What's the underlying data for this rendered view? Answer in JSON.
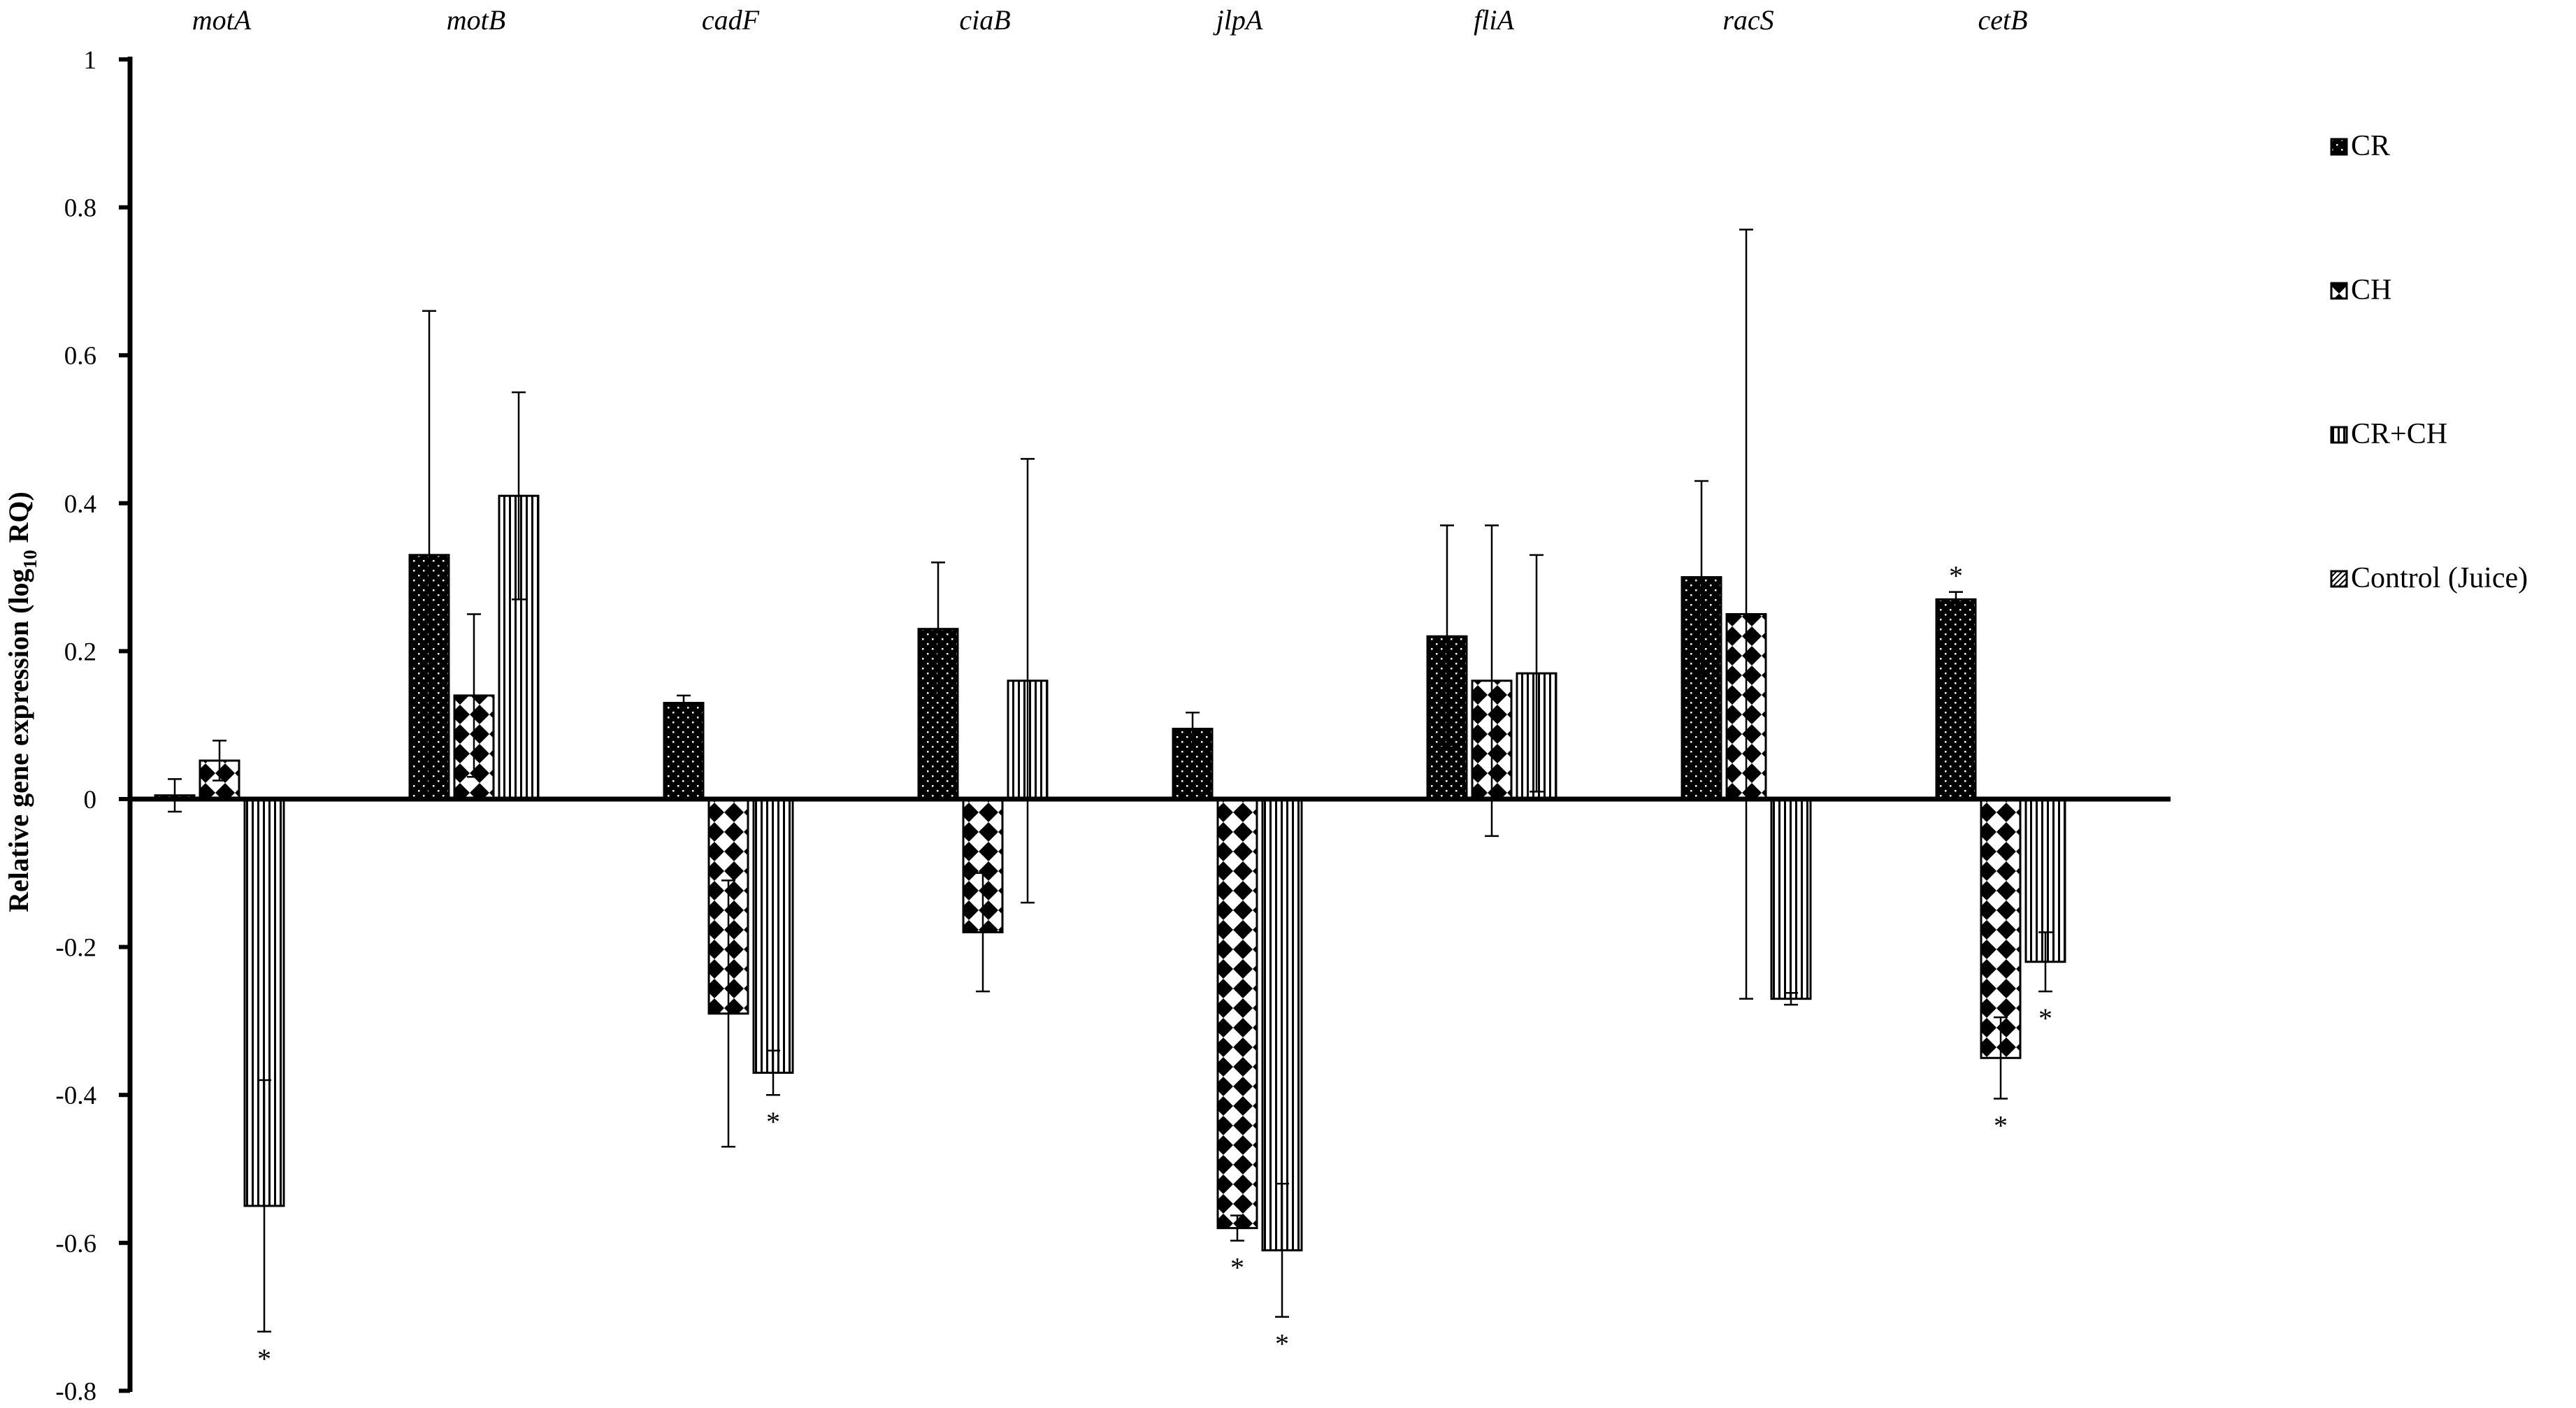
{
  "chart_data": {
    "type": "bar",
    "title": "",
    "xlabel": "",
    "ylabel": "Relative gene expression (log10 RQ)",
    "ylabel_parts": {
      "pre": "Relative gene expression (log",
      "sub": "10",
      "post": " RQ)"
    },
    "ylim": [
      -0.8,
      1.0
    ],
    "yticks": [
      1,
      0.8,
      0.6,
      0.4,
      0.2,
      0,
      -0.2,
      -0.4,
      -0.6,
      -0.8
    ],
    "ytick_labels": [
      "1",
      "0.8",
      "0.6",
      "0.4",
      "0.2",
      "0",
      "-0.2",
      "-0.4",
      "-0.6",
      "-0.8"
    ],
    "categories": [
      "motA",
      "motB",
      "cadF",
      "ciaB",
      "jlpA",
      "fliA",
      "racS",
      "cetB"
    ],
    "legend_position": "right",
    "series": [
      {
        "name": "CR",
        "pattern": "dots",
        "values": [
          0.005,
          0.33,
          0.13,
          0.23,
          0.095,
          0.22,
          0.3,
          0.27
        ],
        "errors": [
          0.022,
          0.33,
          0.01,
          0.09,
          0.022,
          0.15,
          0.13,
          0.01
        ],
        "significant": [
          false,
          false,
          false,
          false,
          false,
          false,
          false,
          true
        ]
      },
      {
        "name": "CH",
        "pattern": "diamonds",
        "values": [
          0.052,
          0.14,
          -0.29,
          -0.18,
          -0.58,
          0.16,
          0.25,
          -0.35
        ],
        "errors": [
          0.027,
          0.11,
          0.18,
          0.08,
          0.017,
          0.21,
          0.52,
          0.055
        ],
        "significant": [
          false,
          false,
          false,
          false,
          true,
          false,
          false,
          true
        ]
      },
      {
        "name": "CR+CH",
        "pattern": "vertical-lines",
        "values": [
          -0.55,
          0.41,
          -0.37,
          0.16,
          -0.61,
          0.17,
          -0.27,
          -0.22
        ],
        "errors": [
          0.17,
          0.14,
          0.03,
          0.3,
          0.09,
          0.16,
          0.008,
          0.04
        ],
        "significant": [
          true,
          false,
          true,
          false,
          true,
          false,
          false,
          true
        ]
      },
      {
        "name": "Control (Juice)",
        "pattern": "diagonal-hatch",
        "values": [
          null,
          null,
          null,
          null,
          null,
          null,
          null,
          null
        ],
        "errors": [
          null,
          null,
          null,
          null,
          null,
          null,
          null,
          null
        ],
        "significant": [
          false,
          false,
          false,
          false,
          false,
          false,
          false,
          false
        ]
      }
    ],
    "significance_marker": "*"
  }
}
